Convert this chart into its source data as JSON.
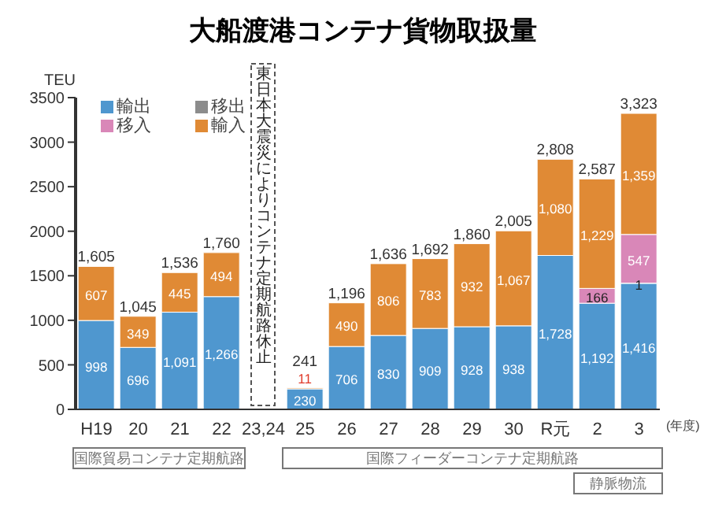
{
  "chart_data": {
    "type": "bar",
    "title": "大船渡港コンテナ貨物取扱量",
    "ylabel": "TEU",
    "stacked": true,
    "legend": "top left",
    "grid": false,
    "data_labels": true,
    "categories": [
      "H19",
      "20",
      "21",
      "22",
      "23,24",
      "25",
      "26",
      "27",
      "28",
      "29",
      "30",
      "R元",
      "2",
      "3"
    ],
    "ylim": [
      0,
      3500
    ],
    "yticks": [
      0,
      500,
      1000,
      1500,
      2000,
      2500,
      3000,
      3500
    ],
    "series": [
      {
        "name": "輸出",
        "color": "#4f97cf",
        "values": [
          998,
          696,
          1091,
          1266,
          null,
          230,
          706,
          830,
          909,
          928,
          938,
          1728,
          1192,
          1416
        ],
        "value_labels": [
          "998",
          "696",
          "1,091",
          "1,266",
          null,
          "230",
          "706",
          "830",
          "909",
          "928",
          "938",
          "1,728",
          "1,192",
          "1,416"
        ]
      },
      {
        "name": "移出",
        "color": "#8c8c8c",
        "values": [
          null,
          null,
          null,
          null,
          null,
          null,
          null,
          null,
          null,
          null,
          null,
          null,
          null,
          1
        ],
        "value_labels": [
          null,
          null,
          null,
          null,
          null,
          null,
          null,
          null,
          null,
          null,
          null,
          null,
          null,
          "1"
        ]
      },
      {
        "name": "移入",
        "color": "#d987b8",
        "values": [
          null,
          null,
          null,
          null,
          null,
          null,
          null,
          null,
          null,
          null,
          null,
          null,
          166,
          547
        ],
        "value_labels": [
          null,
          null,
          null,
          null,
          null,
          null,
          null,
          null,
          null,
          null,
          null,
          null,
          "166",
          "547"
        ]
      },
      {
        "name": "輸入",
        "color": "#e08a35",
        "values": [
          607,
          349,
          445,
          494,
          null,
          11,
          490,
          806,
          783,
          932,
          1067,
          1080,
          1229,
          1359
        ],
        "value_labels": [
          "607",
          "349",
          "445",
          "494",
          null,
          "11",
          "490",
          "806",
          "783",
          "932",
          "1,067",
          "1,080",
          "1,229",
          "1,359"
        ]
      }
    ],
    "totals": [
      "1,605",
      "1,045",
      "1,536",
      "1,760",
      null,
      "241",
      "1,196",
      "1,636",
      "1,692",
      "1,860",
      "2,005",
      "2,808",
      "2,587",
      "3,323"
    ],
    "annotations": [
      "東日本大震災によりコンテナ定期航路休止",
      "(年度)",
      "国際貿易コンテナ定期航路",
      "国際フィーダーコンテナ定期航路",
      "静脈物流"
    ]
  }
}
